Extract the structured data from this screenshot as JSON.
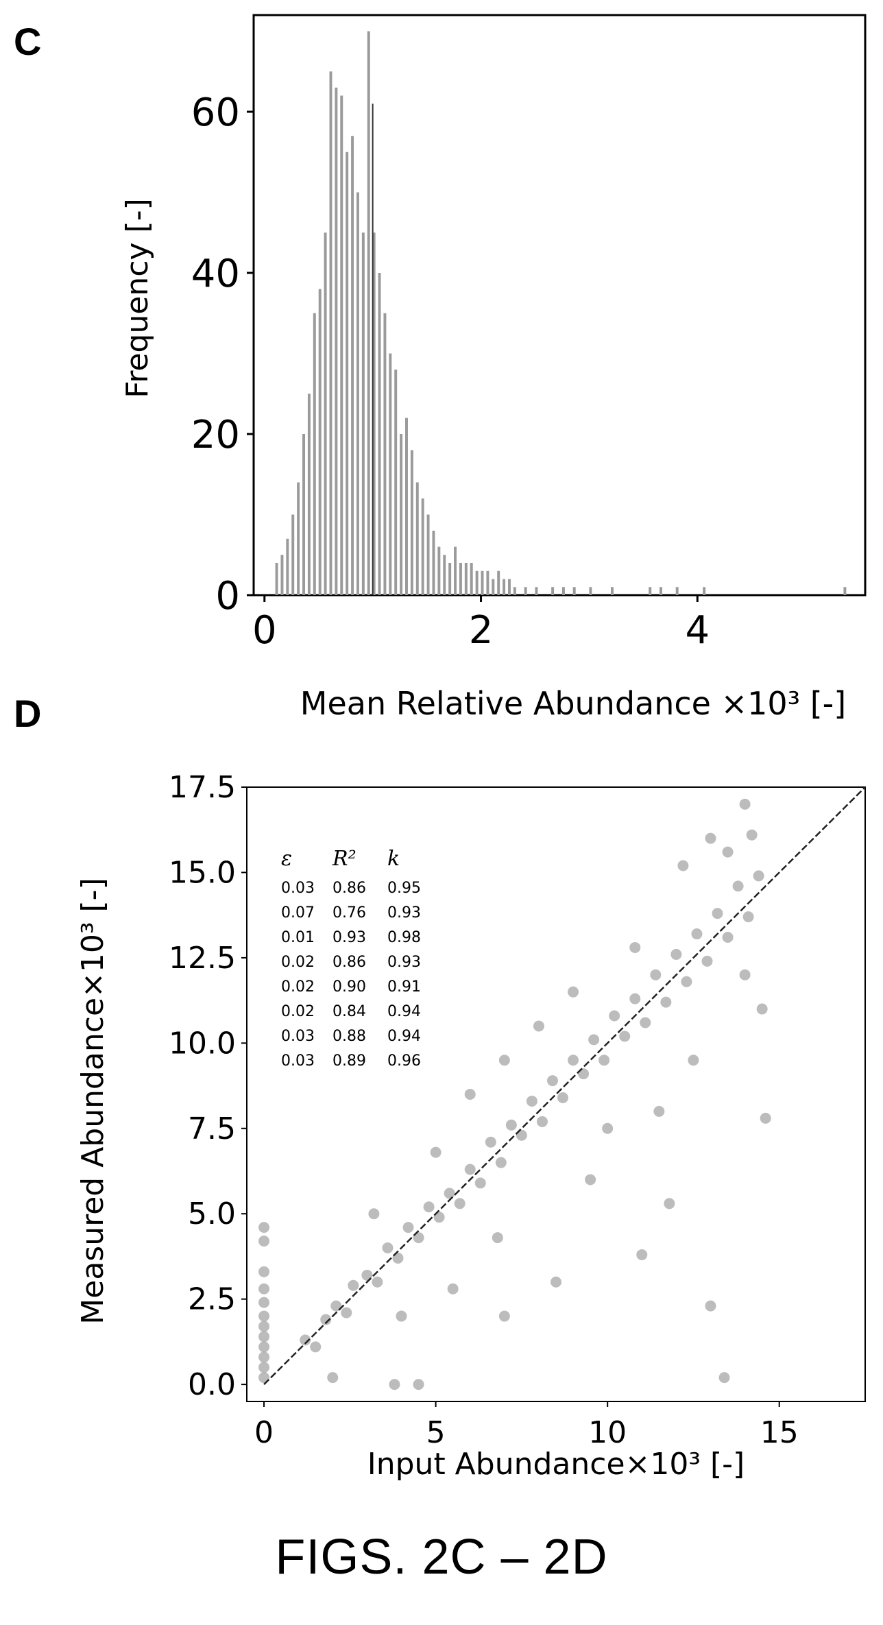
{
  "caption": "FIGS. 2C – 2D",
  "chart_data": [
    {
      "panel": "C",
      "type": "bar",
      "xlabel": "Mean Relative Abundance ×10³ [-]",
      "ylabel": "Frequency [-]",
      "xlim": [
        -0.1,
        5.55
      ],
      "ylim": [
        0,
        72
      ],
      "xticks": [
        0,
        2,
        4
      ],
      "yticks": [
        0,
        20,
        40,
        60
      ],
      "grid": false,
      "bar_color": "#9a9a9a",
      "vertical_line_x": 1.0,
      "histogram": {
        "bin_width": 0.025,
        "bins": [
          [
            0.1,
            4
          ],
          [
            0.15,
            5
          ],
          [
            0.2,
            7
          ],
          [
            0.25,
            10
          ],
          [
            0.3,
            14
          ],
          [
            0.35,
            20
          ],
          [
            0.4,
            25
          ],
          [
            0.45,
            35
          ],
          [
            0.5,
            38
          ],
          [
            0.55,
            45
          ],
          [
            0.6,
            65
          ],
          [
            0.65,
            63
          ],
          [
            0.7,
            62
          ],
          [
            0.75,
            55
          ],
          [
            0.8,
            57
          ],
          [
            0.85,
            50
          ],
          [
            0.9,
            45
          ],
          [
            0.95,
            70
          ],
          [
            1.0,
            45
          ],
          [
            1.05,
            40
          ],
          [
            1.1,
            35
          ],
          [
            1.15,
            30
          ],
          [
            1.2,
            28
          ],
          [
            1.25,
            20
          ],
          [
            1.3,
            22
          ],
          [
            1.35,
            18
          ],
          [
            1.4,
            14
          ],
          [
            1.45,
            12
          ],
          [
            1.5,
            10
          ],
          [
            1.55,
            8
          ],
          [
            1.6,
            6
          ],
          [
            1.65,
            5
          ],
          [
            1.7,
            4
          ],
          [
            1.75,
            6
          ],
          [
            1.8,
            4
          ],
          [
            1.85,
            4
          ],
          [
            1.9,
            4
          ],
          [
            1.95,
            3
          ],
          [
            2.0,
            3
          ],
          [
            2.05,
            3
          ],
          [
            2.1,
            2
          ],
          [
            2.15,
            3
          ],
          [
            2.2,
            2
          ],
          [
            2.25,
            2
          ],
          [
            2.3,
            1
          ],
          [
            2.4,
            1
          ],
          [
            2.5,
            1
          ],
          [
            2.65,
            1
          ],
          [
            2.75,
            1
          ],
          [
            2.85,
            1
          ],
          [
            3.0,
            1
          ],
          [
            3.2,
            1
          ],
          [
            3.55,
            1
          ],
          [
            3.65,
            1
          ],
          [
            3.8,
            1
          ],
          [
            4.05,
            1
          ],
          [
            5.35,
            1
          ]
        ]
      }
    },
    {
      "panel": "D",
      "type": "scatter",
      "xlabel": "Input Abundance×10³  [-]",
      "ylabel": "Measured Abundance×10³ [-]",
      "xlim": [
        -0.5,
        17.5
      ],
      "ylim": [
        -0.5,
        17.5
      ],
      "xticks": [
        0,
        5,
        10,
        15
      ],
      "yticks": [
        "0.0",
        "2.5",
        "5.0",
        "7.5",
        "10.0",
        "12.5",
        "15.0",
        "17.5"
      ],
      "grid": false,
      "point_color": "#a5a5a5",
      "identity_line": [
        [
          0,
          0
        ],
        [
          17.5,
          17.5
        ]
      ],
      "stats_table": {
        "headers": [
          "ε",
          "R²",
          "k"
        ],
        "rows": [
          [
            "0.03",
            "0.86",
            "0.95"
          ],
          [
            "0.07",
            "0.76",
            "0.93"
          ],
          [
            "0.01",
            "0.93",
            "0.98"
          ],
          [
            "0.02",
            "0.86",
            "0.93"
          ],
          [
            "0.02",
            "0.90",
            "0.91"
          ],
          [
            "0.02",
            "0.84",
            "0.94"
          ],
          [
            "0.03",
            "0.88",
            "0.94"
          ],
          [
            "0.03",
            "0.89",
            "0.96"
          ]
        ]
      },
      "point_density": "approximately 1000 points clustered along y = x from 1 to 15, with a vertical column of points at x = 0 spanning y 0 to 5",
      "points": [
        [
          0,
          0.2
        ],
        [
          0,
          0.5
        ],
        [
          0,
          0.8
        ],
        [
          0,
          1.1
        ],
        [
          0,
          1.4
        ],
        [
          0,
          1.7
        ],
        [
          0,
          2.0
        ],
        [
          0,
          2.4
        ],
        [
          0,
          2.8
        ],
        [
          0,
          3.3
        ],
        [
          0,
          4.2
        ],
        [
          0,
          4.6
        ],
        [
          1.2,
          1.3
        ],
        [
          1.5,
          1.1
        ],
        [
          1.8,
          1.9
        ],
        [
          2.1,
          2.3
        ],
        [
          2.4,
          2.1
        ],
        [
          2.6,
          2.9
        ],
        [
          3.0,
          3.2
        ],
        [
          3.3,
          3.0
        ],
        [
          3.6,
          4.0
        ],
        [
          3.9,
          3.7
        ],
        [
          4.2,
          4.6
        ],
        [
          4.5,
          4.3
        ],
        [
          4.8,
          5.2
        ],
        [
          5.1,
          4.9
        ],
        [
          5.4,
          5.6
        ],
        [
          5.7,
          5.3
        ],
        [
          6.0,
          6.3
        ],
        [
          6.3,
          5.9
        ],
        [
          6.6,
          7.1
        ],
        [
          6.9,
          6.5
        ],
        [
          7.2,
          7.6
        ],
        [
          7.5,
          7.3
        ],
        [
          7.8,
          8.3
        ],
        [
          8.1,
          7.7
        ],
        [
          8.4,
          8.9
        ],
        [
          8.7,
          8.4
        ],
        [
          9.0,
          9.5
        ],
        [
          9.3,
          9.1
        ],
        [
          9.6,
          10.1
        ],
        [
          9.9,
          9.5
        ],
        [
          10.2,
          10.8
        ],
        [
          10.5,
          10.2
        ],
        [
          10.8,
          11.3
        ],
        [
          11.1,
          10.6
        ],
        [
          11.4,
          12.0
        ],
        [
          11.7,
          11.2
        ],
        [
          12.0,
          12.6
        ],
        [
          12.3,
          11.8
        ],
        [
          12.6,
          13.2
        ],
        [
          12.9,
          12.4
        ],
        [
          13.2,
          13.8
        ],
        [
          13.5,
          13.1
        ],
        [
          13.8,
          14.6
        ],
        [
          14.1,
          13.7
        ],
        [
          14.4,
          14.9
        ],
        [
          13.5,
          15.6
        ],
        [
          14.2,
          16.1
        ],
        [
          13.0,
          16.0
        ],
        [
          14.0,
          12.0
        ],
        [
          14.5,
          11.0
        ],
        [
          12.5,
          9.5
        ],
        [
          11.5,
          8.0
        ],
        [
          10.0,
          7.5
        ],
        [
          9.0,
          11.5
        ],
        [
          8.0,
          10.5
        ],
        [
          7.0,
          9.5
        ],
        [
          6.0,
          8.5
        ],
        [
          4.0,
          2.0
        ],
        [
          5.5,
          2.8
        ],
        [
          7.0,
          2.0
        ],
        [
          11.0,
          3.8
        ],
        [
          13.0,
          2.3
        ],
        [
          14.6,
          7.8
        ],
        [
          12.2,
          15.2
        ],
        [
          11.8,
          5.3
        ],
        [
          9.5,
          6.0
        ],
        [
          3.8,
          0.0
        ],
        [
          4.5,
          0.0
        ],
        [
          2.0,
          0.2
        ],
        [
          14.0,
          17.0
        ],
        [
          13.4,
          0.2
        ],
        [
          8.5,
          3.0
        ],
        [
          10.8,
          12.8
        ],
        [
          6.8,
          4.3
        ],
        [
          5.0,
          6.8
        ],
        [
          3.2,
          5.0
        ]
      ]
    }
  ]
}
